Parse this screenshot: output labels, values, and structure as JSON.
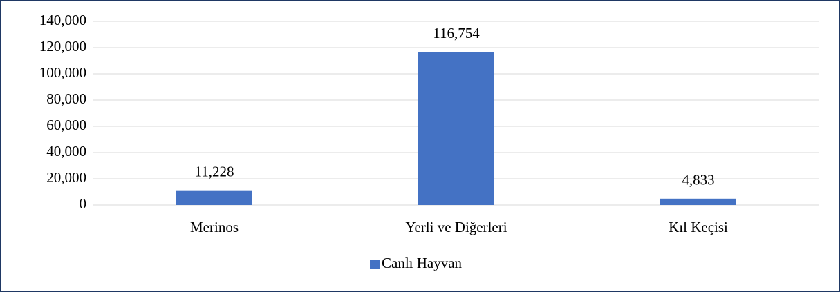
{
  "chart_data": {
    "type": "bar",
    "categories": [
      "Merinos",
      "Yerli ve Diğerleri",
      "Kıl Keçisi"
    ],
    "series": [
      {
        "name": "Canlı Hayvan",
        "color": "#4472c4",
        "values": [
          11228,
          116754,
          4833
        ],
        "value_labels": [
          "11,228",
          "116,754",
          "4,833"
        ]
      }
    ],
    "ylim": [
      0,
      140000
    ],
    "yticks": [
      0,
      {
        "value": 20000,
        "label": "20,000"
      },
      {
        "value": 40000,
        "label": "40,000"
      },
      {
        "value": 60000,
        "label": "60,000"
      },
      {
        "value": 80000,
        "label": "80,000"
      },
      {
        "value": 100000,
        "label": "100,000"
      },
      {
        "value": 120000,
        "label": "120,000"
      },
      {
        "value": 140000,
        "label": "140,000"
      }
    ],
    "grid": true,
    "legend": "bottom"
  }
}
